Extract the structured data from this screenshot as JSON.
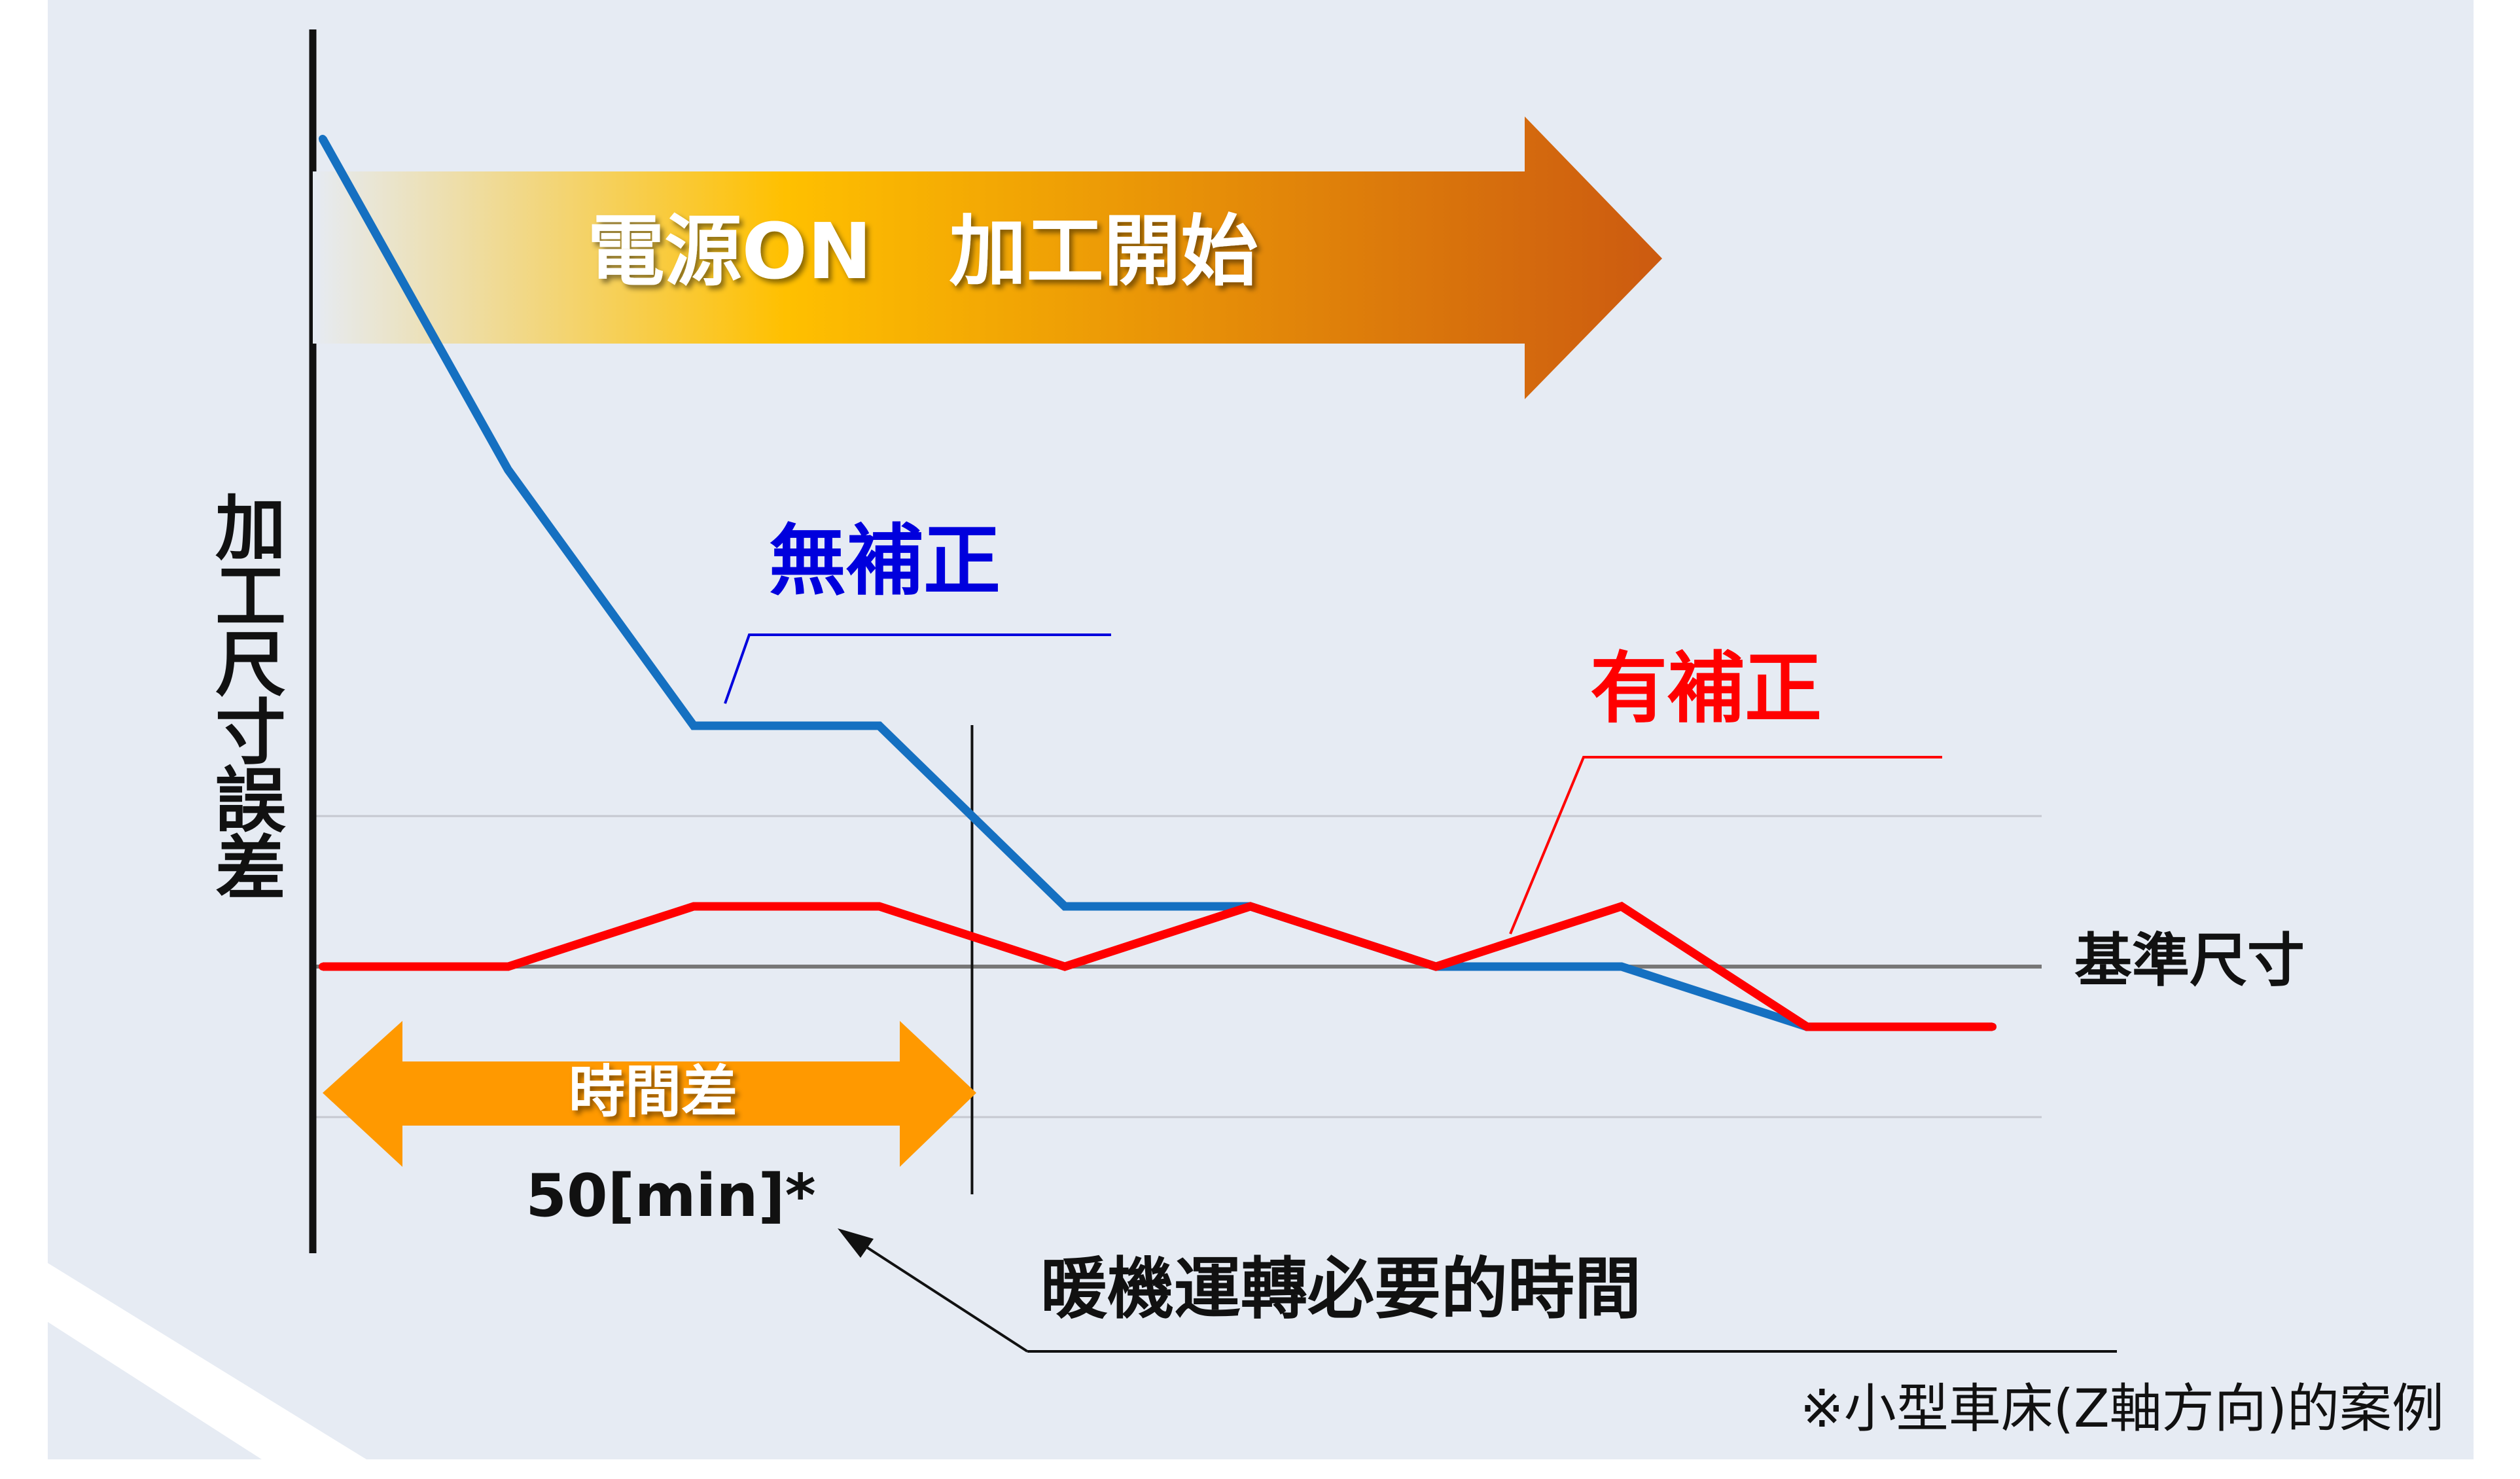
{
  "chart_data": {
    "type": "line",
    "title": "",
    "xlabel": "",
    "ylabel": "加工尺寸誤差",
    "x": [
      0,
      1,
      2,
      3,
      4,
      5,
      6,
      7,
      8,
      9
    ],
    "ylim": [
      -2.5,
      6
    ],
    "series": [
      {
        "name": "無補正",
        "values": [
          5.5,
          3.3,
          1.6,
          1.6,
          0.4,
          0.4,
          0.0,
          0.0,
          -0.4,
          -0.4
        ],
        "color": "#1570c1"
      },
      {
        "name": "有補正",
        "values": [
          0.0,
          0.0,
          0.4,
          0.4,
          0.0,
          0.4,
          0.0,
          0.4,
          -0.4,
          -0.4
        ],
        "color": "#ff0000"
      }
    ],
    "reference_line": {
      "label": "基準尺寸",
      "value": 0
    },
    "gridlines": [
      1,
      -1
    ],
    "time_difference": {
      "label": "時間差",
      "value": "50[min]*",
      "from_x": 0,
      "to_x": 3.5
    },
    "arrow_banner": "電源ON　加工開始",
    "annotation": "暖機運轉必要的時間",
    "footnote": "※小型車床(Z軸方向)的案例",
    "grid": false,
    "legend": "direct-labels"
  },
  "colors": {
    "background": "#e6ebf3",
    "axis": "#111111",
    "reference": "#777777",
    "gridline": "#c5c8d0",
    "time_arrow": "#ff9900",
    "banner_start": "#e6ebf3",
    "banner_mid": "#ffc000",
    "banner_end": "#cc5a10",
    "label_blue": "#0000dd",
    "label_red": "#ff0000"
  }
}
